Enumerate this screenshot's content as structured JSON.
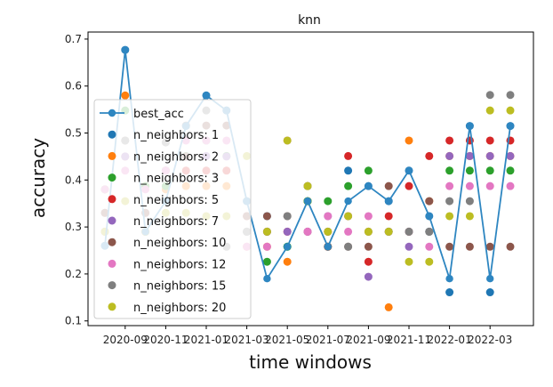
{
  "chart_data": {
    "type": "scatter",
    "title": "knn",
    "xlabel": "time windows",
    "ylabel": "accuracy",
    "x_ticks": [
      "2020-09",
      "2020-11",
      "2021-01",
      "2021-03",
      "2021-05",
      "2021-07",
      "2021-09",
      "2021-11",
      "2022-01",
      "2022-03"
    ],
    "x_windows": [
      "2020-08",
      "2020-09",
      "2020-10",
      "2020-11",
      "2020-12",
      "2021-01",
      "2021-02",
      "2021-03",
      "2021-04",
      "2021-05",
      "2021-06",
      "2021-07",
      "2021-08",
      "2021-09",
      "2021-10",
      "2021-11",
      "2021-12",
      "2022-01",
      "2022-02",
      "2022-03",
      "2022-04"
    ],
    "ylim": [
      0.09,
      0.715
    ],
    "y_ticks": [
      0.1,
      0.2,
      0.3,
      0.4,
      0.5,
      0.6,
      0.7
    ],
    "legend_position": "left",
    "colors": {
      "best_acc": "#2e86c1",
      "n_neighbors: 1": "#1f77b4",
      "n_neighbors: 2": "#ff7f0e",
      "n_neighbors: 3": "#2ca02c",
      "n_neighbors: 5": "#d62728",
      "n_neighbors: 7": "#9467bd",
      "n_neighbors: 10": "#8c564b",
      "n_neighbors: 12": "#e377c2",
      "n_neighbors: 15": "#7f7f7f",
      "n_neighbors: 20": "#bcbd22"
    },
    "line_series": {
      "name": "best_acc",
      "values": [
        0.26,
        0.677,
        0.29,
        0.355,
        0.515,
        0.58,
        0.548,
        0.355,
        0.19,
        0.258,
        0.355,
        0.258,
        0.355,
        0.387,
        0.355,
        0.42,
        0.323,
        0.19,
        0.515,
        0.19,
        0.515
      ]
    },
    "scatter_series": [
      {
        "name": "n_neighbors: 1",
        "values": [
          0.26,
          0.677,
          0.29,
          0.355,
          0.515,
          0.58,
          0.548,
          0.355,
          0.323,
          0.258,
          0.355,
          0.258,
          0.42,
          0.387,
          0.355,
          0.42,
          0.323,
          0.161,
          0.515,
          0.161,
          0.515
        ]
      },
      {
        "name": "n_neighbors: 2",
        "values": [
          0.38,
          0.58,
          0.387,
          0.38,
          0.387,
          0.387,
          0.387,
          0.258,
          0.258,
          0.226,
          0.355,
          0.258,
          0.323,
          0.29,
          0.129,
          0.484,
          0.355,
          0.451,
          0.451,
          0.451,
          0.451
        ]
      },
      {
        "name": "n_neighbors: 3",
        "values": [
          0.38,
          0.548,
          0.387,
          0.387,
          0.451,
          0.484,
          0.451,
          0.29,
          0.226,
          0.258,
          0.355,
          0.355,
          0.387,
          0.42,
          0.29,
          0.29,
          0.29,
          0.42,
          0.42,
          0.42,
          0.42
        ]
      },
      {
        "name": "n_neighbors: 5",
        "values": [
          0.29,
          0.45,
          0.29,
          0.42,
          0.42,
          0.42,
          0.42,
          0.323,
          0.29,
          0.29,
          0.29,
          0.29,
          0.451,
          0.226,
          0.323,
          0.387,
          0.451,
          0.484,
          0.484,
          0.484,
          0.484
        ]
      },
      {
        "name": "n_neighbors: 7",
        "values": [
          0.33,
          0.45,
          0.33,
          0.42,
          0.45,
          0.451,
          0.45,
          0.29,
          0.29,
          0.29,
          0.29,
          0.323,
          0.323,
          0.194,
          0.29,
          0.258,
          0.29,
          0.451,
          0.451,
          0.451,
          0.451
        ]
      },
      {
        "name": "n_neighbors: 10",
        "values": [
          0.33,
          0.484,
          0.33,
          0.42,
          0.45,
          0.516,
          0.516,
          0.323,
          0.323,
          0.323,
          0.387,
          0.258,
          0.258,
          0.258,
          0.387,
          0.29,
          0.355,
          0.258,
          0.258,
          0.258,
          0.258
        ]
      },
      {
        "name": "n_neighbors: 12",
        "values": [
          0.38,
          0.42,
          0.38,
          0.42,
          0.484,
          0.484,
          0.484,
          0.258,
          0.258,
          0.484,
          0.29,
          0.323,
          0.29,
          0.323,
          0.29,
          0.29,
          0.258,
          0.387,
          0.387,
          0.387,
          0.387
        ]
      },
      {
        "name": "n_neighbors: 15",
        "values": [
          0.29,
          0.484,
          0.29,
          0.48,
          0.516,
          0.548,
          0.258,
          0.29,
          0.29,
          0.323,
          0.387,
          0.29,
          0.258,
          0.29,
          0.29,
          0.29,
          0.29,
          0.355,
          0.355,
          0.581,
          0.581
        ]
      },
      {
        "name": "n_neighbors: 20",
        "values": [
          0.29,
          0.355,
          0.29,
          0.33,
          0.33,
          0.323,
          0.323,
          0.451,
          0.29,
          0.484,
          0.387,
          0.29,
          0.323,
          0.29,
          0.29,
          0.226,
          0.226,
          0.323,
          0.323,
          0.548,
          0.548
        ]
      }
    ]
  }
}
